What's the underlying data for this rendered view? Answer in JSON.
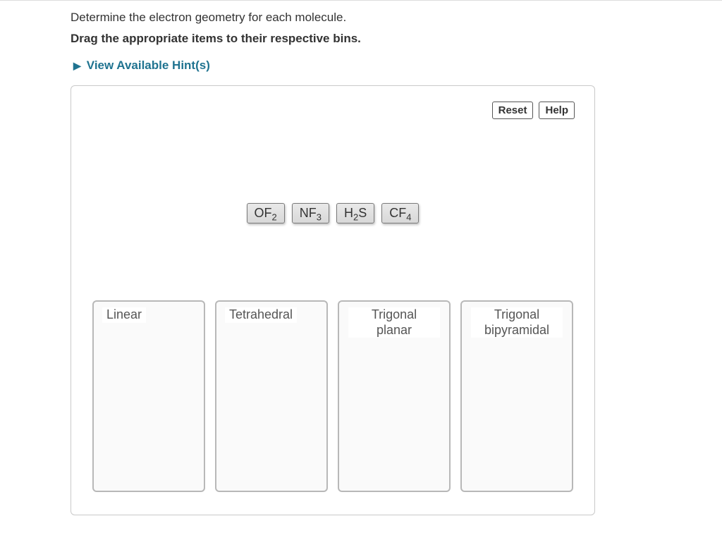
{
  "prompt": "Determine the electron geometry for each molecule.",
  "instruction": "Drag the appropriate items to their respective bins.",
  "hints_label": "View Available Hint(s)",
  "toolbar": {
    "reset_label": "Reset",
    "help_label": "Help"
  },
  "items": [
    {
      "main": "OF",
      "sub": "2"
    },
    {
      "main": "NF",
      "sub": "3"
    },
    {
      "pre": "H",
      "presub": "2",
      "main": "S"
    },
    {
      "main": "CF",
      "sub": "4"
    }
  ],
  "bins": [
    {
      "label": "Linear"
    },
    {
      "label": "Tetrahedral"
    },
    {
      "label_line1": "Trigonal",
      "label_line2": "planar"
    },
    {
      "label_line1": "Trigonal",
      "label_line2": "bipyramidal"
    }
  ],
  "colors": {
    "accent": "#1f7390",
    "border": "#c9c9c9",
    "bin_border": "#b8b8b8",
    "bin_bg": "#fafafa"
  }
}
